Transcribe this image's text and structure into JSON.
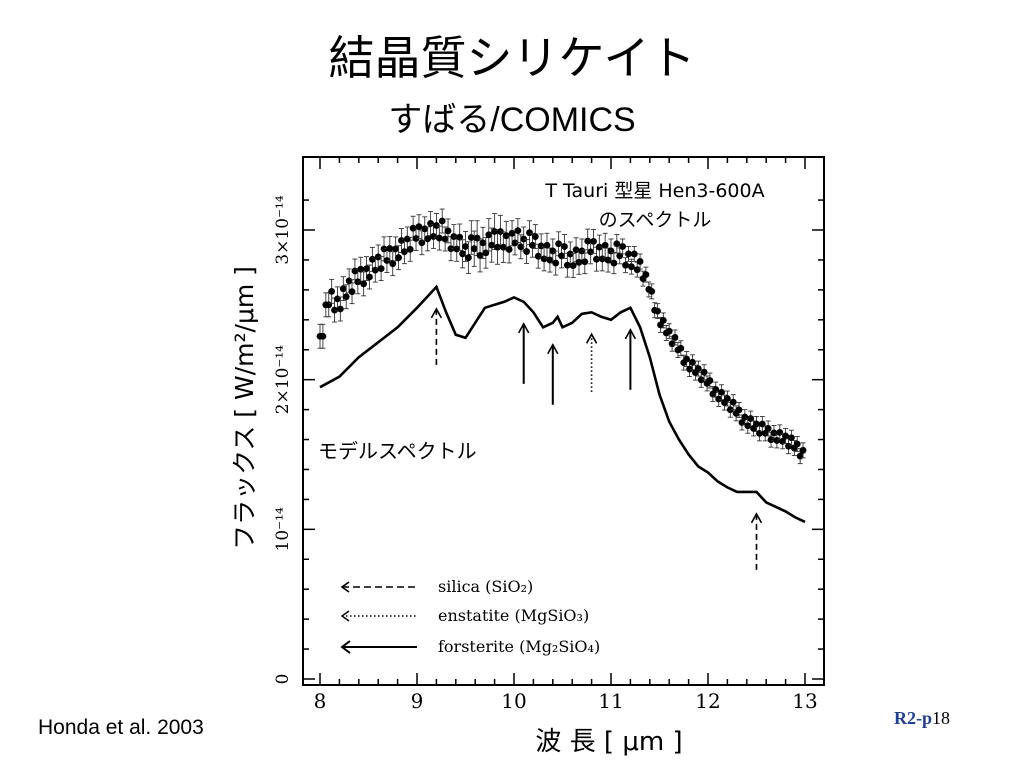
{
  "slide": {
    "title": "結晶質シリケイト",
    "subtitle": "すばる/COMICS",
    "credit": "Honda et al. 2003",
    "page_prefix": "R2-p",
    "page_number": "18"
  },
  "chart_data": {
    "type": "line",
    "title": "T Tauri 型星 Hen3-600A",
    "title_line2": "のスペクトル",
    "xlabel": "波 長 [ μm ]",
    "ylabel": "フラックス [ W/m²/μm ]",
    "xlim": [
      8,
      13
    ],
    "ylim": [
      0,
      3.5e-14
    ],
    "x_ticks": [
      "8",
      "9",
      "10",
      "11",
      "12",
      "13"
    ],
    "y_ticks": [
      {
        "value": 0,
        "label": "0"
      },
      {
        "value": 1e-14,
        "label": "10⁻¹⁴"
      },
      {
        "value": 2e-14,
        "label": "2×10⁻¹⁴"
      },
      {
        "value": 3e-14,
        "label": "3×10⁻¹⁴"
      }
    ],
    "model_label": "モデルスペクトル",
    "series": [
      {
        "name": "observed",
        "style": "points_with_errorbars",
        "x": [
          8.0,
          8.1,
          8.2,
          8.3,
          8.4,
          8.5,
          8.6,
          8.7,
          8.8,
          8.9,
          9.0,
          9.1,
          9.2,
          9.25,
          9.3,
          9.4,
          9.5,
          9.6,
          9.7,
          9.8,
          9.9,
          10.0,
          10.1,
          10.2,
          10.3,
          10.4,
          10.5,
          10.6,
          10.7,
          10.8,
          10.9,
          11.0,
          11.1,
          11.2,
          11.3,
          11.4,
          11.5,
          11.6,
          11.7,
          11.8,
          11.9,
          12.0,
          12.1,
          12.2,
          12.3,
          12.4,
          12.5,
          12.6,
          12.7,
          12.8,
          12.9,
          13.0
        ],
        "y": [
          2.25,
          2.55,
          2.5,
          2.62,
          2.68,
          2.72,
          2.78,
          2.82,
          2.85,
          2.9,
          2.97,
          2.98,
          2.99,
          3.0,
          2.95,
          2.92,
          2.85,
          2.9,
          2.88,
          2.95,
          2.9,
          2.96,
          2.9,
          2.92,
          2.85,
          2.82,
          2.85,
          2.8,
          2.82,
          2.88,
          2.85,
          2.82,
          2.85,
          2.8,
          2.75,
          2.6,
          2.4,
          2.3,
          2.2,
          2.1,
          2.05,
          1.98,
          1.9,
          1.85,
          1.78,
          1.72,
          1.68,
          1.65,
          1.62,
          1.6,
          1.55,
          1.5
        ],
        "yerr": [
          0.08,
          0.08,
          0.08,
          0.08,
          0.08,
          0.08,
          0.08,
          0.08,
          0.08,
          0.08,
          0.08,
          0.08,
          0.08,
          0.08,
          0.08,
          0.08,
          0.1,
          0.12,
          0.1,
          0.12,
          0.1,
          0.08,
          0.08,
          0.08,
          0.08,
          0.08,
          0.08,
          0.08,
          0.08,
          0.08,
          0.08,
          0.08,
          0.05,
          0.05,
          0.05,
          0.05,
          0.05,
          0.05,
          0.05,
          0.05,
          0.05,
          0.05,
          0.05,
          0.05,
          0.05,
          0.05,
          0.05,
          0.05,
          0.05,
          0.05,
          0.05,
          0.05
        ],
        "y_unit": "1e-14 W/m2/um"
      },
      {
        "name": "モデルスペクトル",
        "style": "line",
        "x": [
          8.0,
          8.2,
          8.4,
          8.6,
          8.8,
          9.0,
          9.1,
          9.2,
          9.3,
          9.4,
          9.5,
          9.6,
          9.7,
          9.8,
          9.9,
          10.0,
          10.1,
          10.2,
          10.3,
          10.4,
          10.45,
          10.5,
          10.6,
          10.7,
          10.8,
          10.9,
          11.0,
          11.1,
          11.2,
          11.3,
          11.4,
          11.5,
          11.6,
          11.7,
          11.8,
          11.9,
          12.0,
          12.1,
          12.2,
          12.3,
          12.4,
          12.5,
          12.6,
          12.7,
          12.8,
          12.9,
          13.0
        ],
        "y": [
          1.95,
          2.02,
          2.15,
          2.25,
          2.35,
          2.48,
          2.55,
          2.62,
          2.45,
          2.3,
          2.28,
          2.38,
          2.48,
          2.5,
          2.52,
          2.55,
          2.52,
          2.45,
          2.35,
          2.38,
          2.42,
          2.35,
          2.38,
          2.44,
          2.45,
          2.42,
          2.4,
          2.45,
          2.48,
          2.35,
          2.15,
          1.9,
          1.72,
          1.6,
          1.5,
          1.42,
          1.38,
          1.32,
          1.28,
          1.25,
          1.25,
          1.25,
          1.18,
          1.15,
          1.12,
          1.08,
          1.05
        ],
        "y_unit": "1e-14 W/m2/um"
      }
    ],
    "feature_markers": [
      {
        "x": 9.2,
        "type": "silica",
        "style": "dashed"
      },
      {
        "x": 10.1,
        "type": "forsterite",
        "style": "solid"
      },
      {
        "x": 10.4,
        "type": "forsterite",
        "style": "solid"
      },
      {
        "x": 10.8,
        "type": "enstatite",
        "style": "dotted"
      },
      {
        "x": 11.2,
        "type": "forsterite",
        "style": "solid"
      },
      {
        "x": 12.5,
        "type": "silica",
        "style": "dashed"
      }
    ],
    "legend": [
      {
        "label": "silica (SiO₂)",
        "style": "dashed"
      },
      {
        "label": "enstatite (MgSiO₃)",
        "style": "dotted"
      },
      {
        "label": "forsterite (Mg₂SiO₄)",
        "style": "solid"
      }
    ]
  }
}
